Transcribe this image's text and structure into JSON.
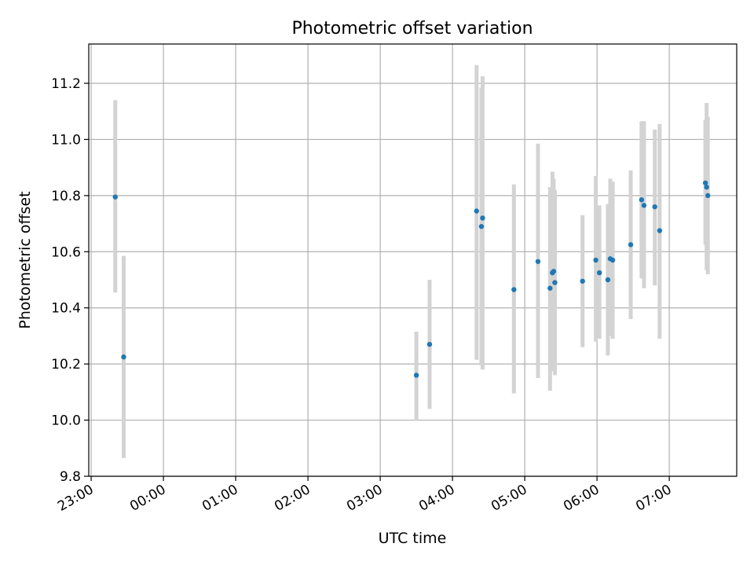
{
  "chart_data": {
    "type": "scatter",
    "title": "Photometric offset variation",
    "xlabel": "UTC time",
    "ylabel": "Photometric offset",
    "x_axis_kind": "time (hours after 23:00)",
    "xlim": [
      "22:58",
      "07:56"
    ],
    "xticks": [
      "23:00",
      "00:00",
      "01:00",
      "02:00",
      "03:00",
      "04:00",
      "05:00",
      "06:00",
      "07:00"
    ],
    "ylim": [
      9.8,
      11.34
    ],
    "yticks": [
      "9.8",
      "10.0",
      "10.2",
      "10.4",
      "10.6",
      "10.8",
      "11.0",
      "11.2"
    ],
    "grid": true,
    "marker_color": "#1f77b4",
    "errorbar_color": "#d3d3d3",
    "points": [
      {
        "x": "23:20",
        "y": 10.795,
        "err_low": 10.455,
        "err_high": 11.14
      },
      {
        "x": "23:27",
        "y": 10.225,
        "err_low": 9.865,
        "err_high": 10.585
      },
      {
        "x": "03:30",
        "y": 10.16,
        "err_low": 10.0,
        "err_high": 10.315
      },
      {
        "x": "03:41",
        "y": 10.27,
        "err_low": 10.04,
        "err_high": 10.5
      },
      {
        "x": "04:20",
        "y": 10.745,
        "err_low": 10.215,
        "err_high": 11.265
      },
      {
        "x": "04:24",
        "y": 10.69,
        "err_low": 10.195,
        "err_high": 11.185
      },
      {
        "x": "04:25",
        "y": 10.72,
        "err_low": 10.18,
        "err_high": 11.225
      },
      {
        "x": "04:51",
        "y": 10.465,
        "err_low": 10.095,
        "err_high": 10.84
      },
      {
        "x": "05:11",
        "y": 10.565,
        "err_low": 10.15,
        "err_high": 10.985
      },
      {
        "x": "05:21",
        "y": 10.47,
        "err_low": 10.105,
        "err_high": 10.83
      },
      {
        "x": "05:23",
        "y": 10.525,
        "err_low": 10.175,
        "err_high": 10.885
      },
      {
        "x": "05:24",
        "y": 10.53,
        "err_low": 10.18,
        "err_high": 10.86
      },
      {
        "x": "05:25",
        "y": 10.49,
        "err_low": 10.16,
        "err_high": 10.82
      },
      {
        "x": "05:48",
        "y": 10.495,
        "err_low": 10.26,
        "err_high": 10.73
      },
      {
        "x": "05:59",
        "y": 10.57,
        "err_low": 10.28,
        "err_high": 10.87
      },
      {
        "x": "06:02",
        "y": 10.525,
        "err_low": 10.29,
        "err_high": 10.765
      },
      {
        "x": "06:09",
        "y": 10.5,
        "err_low": 10.23,
        "err_high": 10.77
      },
      {
        "x": "06:11",
        "y": 10.575,
        "err_low": 10.3,
        "err_high": 10.86
      },
      {
        "x": "06:13",
        "y": 10.57,
        "err_low": 10.29,
        "err_high": 10.85
      },
      {
        "x": "06:28",
        "y": 10.625,
        "err_low": 10.36,
        "err_high": 10.89
      },
      {
        "x": "06:37",
        "y": 10.785,
        "err_low": 10.505,
        "err_high": 11.065
      },
      {
        "x": "06:39",
        "y": 10.765,
        "err_low": 10.47,
        "err_high": 11.065
      },
      {
        "x": "06:48",
        "y": 10.76,
        "err_low": 10.48,
        "err_high": 11.035
      },
      {
        "x": "06:52",
        "y": 10.675,
        "err_low": 10.29,
        "err_high": 11.055
      },
      {
        "x": "07:30",
        "y": 10.845,
        "err_low": 10.625,
        "err_high": 11.07
      },
      {
        "x": "07:31",
        "y": 10.83,
        "err_low": 10.535,
        "err_high": 11.13
      },
      {
        "x": "07:32",
        "y": 10.8,
        "err_low": 10.52,
        "err_high": 11.08
      }
    ]
  }
}
